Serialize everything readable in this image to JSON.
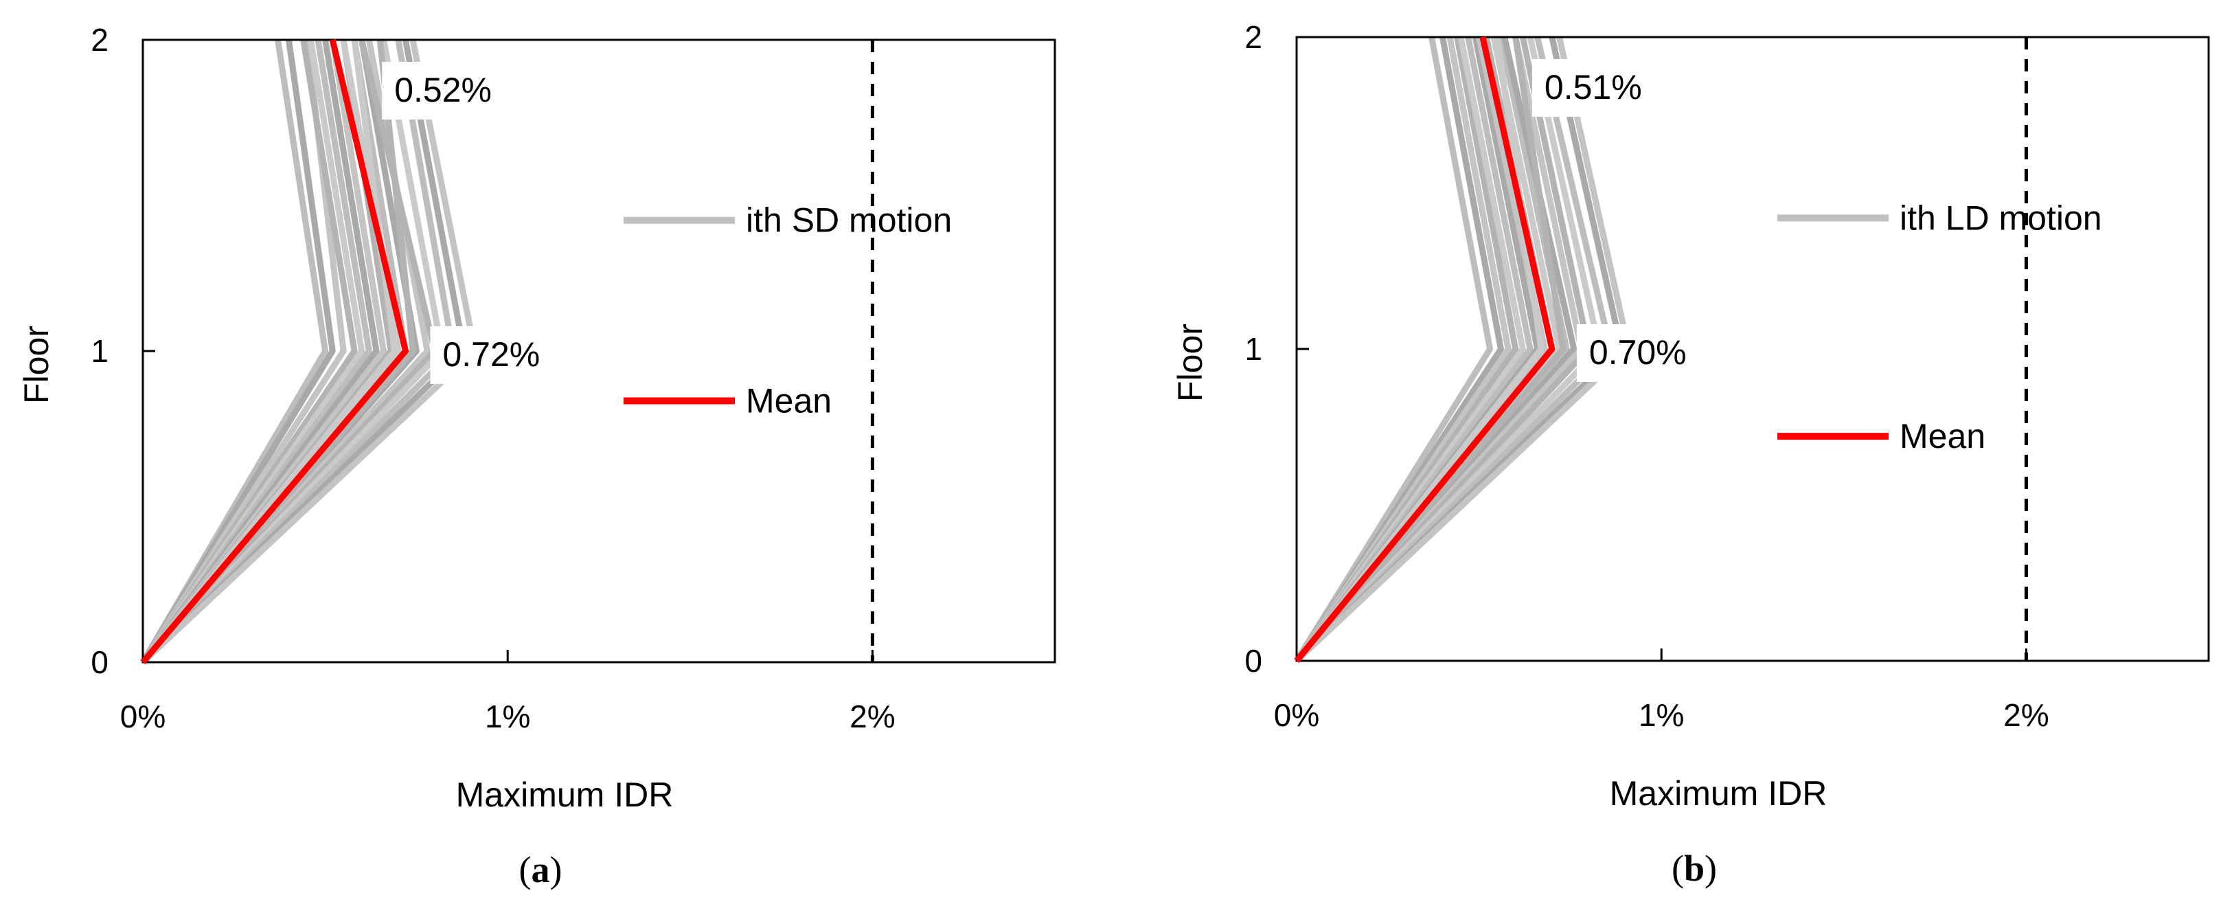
{
  "chart_data": [
    {
      "type": "line",
      "panel_label": "(a)",
      "panel_letter": "a",
      "xlabel": "Maximum IDR",
      "ylabel": "Floor",
      "xlim": [
        0,
        2.5
      ],
      "ylim": [
        0,
        2
      ],
      "x_ticks": [
        0,
        1,
        2
      ],
      "x_tick_labels": [
        "0%",
        "1%",
        "2%"
      ],
      "y_ticks": [
        0,
        1,
        2
      ],
      "y_tick_labels": [
        "0",
        "1",
        "2"
      ],
      "limit_line": {
        "x": 2.0,
        "style": "dashed"
      },
      "legend": {
        "position": "right",
        "motion_label": "ith SD motion",
        "mean_label": "Mean"
      },
      "floors": [
        0,
        1,
        2
      ],
      "motions": [
        [
          0,
          0.5,
          0.37
        ],
        [
          0,
          0.52,
          0.4
        ],
        [
          0,
          0.55,
          0.45
        ],
        [
          0,
          0.58,
          0.44
        ],
        [
          0,
          0.6,
          0.46
        ],
        [
          0,
          0.62,
          0.48
        ],
        [
          0,
          0.64,
          0.5
        ],
        [
          0,
          0.66,
          0.52
        ],
        [
          0,
          0.68,
          0.55
        ],
        [
          0,
          0.7,
          0.55
        ],
        [
          0,
          0.72,
          0.58
        ],
        [
          0,
          0.75,
          0.6
        ],
        [
          0,
          0.78,
          0.62
        ],
        [
          0,
          0.8,
          0.6
        ],
        [
          0,
          0.82,
          0.66
        ],
        [
          0,
          0.85,
          0.7
        ],
        [
          0,
          0.88,
          0.72
        ],
        [
          0,
          0.91,
          0.74
        ],
        [
          0,
          0.74,
          0.65
        ],
        [
          0,
          0.69,
          0.58
        ]
      ],
      "mean": [
        0,
        0.72,
        0.52
      ],
      "annotations": [
        {
          "text": "0.72%",
          "x": 0.72,
          "floor": 1
        },
        {
          "text": "0.52%",
          "x": 0.52,
          "floor": 2
        }
      ]
    },
    {
      "type": "line",
      "panel_label": "(b)",
      "panel_letter": "b",
      "xlabel": "Maximum IDR",
      "ylabel": "Floor",
      "xlim": [
        0,
        2.5
      ],
      "ylim": [
        0,
        2
      ],
      "x_ticks": [
        0,
        1,
        2
      ],
      "x_tick_labels": [
        "0%",
        "1%",
        "2%"
      ],
      "y_ticks": [
        0,
        1,
        2
      ],
      "y_tick_labels": [
        "0",
        "1",
        "2"
      ],
      "limit_line": {
        "x": 2.0,
        "style": "dashed"
      },
      "legend": {
        "position": "right",
        "motion_label": "ith LD motion",
        "mean_label": "Mean"
      },
      "floors": [
        0,
        1,
        2
      ],
      "motions": [
        [
          0,
          0.53,
          0.37
        ],
        [
          0,
          0.56,
          0.4
        ],
        [
          0,
          0.58,
          0.42
        ],
        [
          0,
          0.6,
          0.44
        ],
        [
          0,
          0.62,
          0.45
        ],
        [
          0,
          0.64,
          0.47
        ],
        [
          0,
          0.66,
          0.49
        ],
        [
          0,
          0.68,
          0.5
        ],
        [
          0,
          0.7,
          0.52
        ],
        [
          0,
          0.72,
          0.54
        ],
        [
          0,
          0.74,
          0.56
        ],
        [
          0,
          0.76,
          0.57
        ],
        [
          0,
          0.78,
          0.6
        ],
        [
          0,
          0.8,
          0.62
        ],
        [
          0,
          0.83,
          0.64
        ],
        [
          0,
          0.86,
          0.66
        ],
        [
          0,
          0.89,
          0.7
        ],
        [
          0,
          0.91,
          0.72
        ],
        [
          0,
          0.73,
          0.6
        ],
        [
          0,
          0.67,
          0.55
        ]
      ],
      "mean": [
        0,
        0.7,
        0.51
      ],
      "annotations": [
        {
          "text": "0.70%",
          "x": 0.7,
          "floor": 1
        },
        {
          "text": "0.51%",
          "x": 0.51,
          "floor": 2
        }
      ]
    }
  ]
}
